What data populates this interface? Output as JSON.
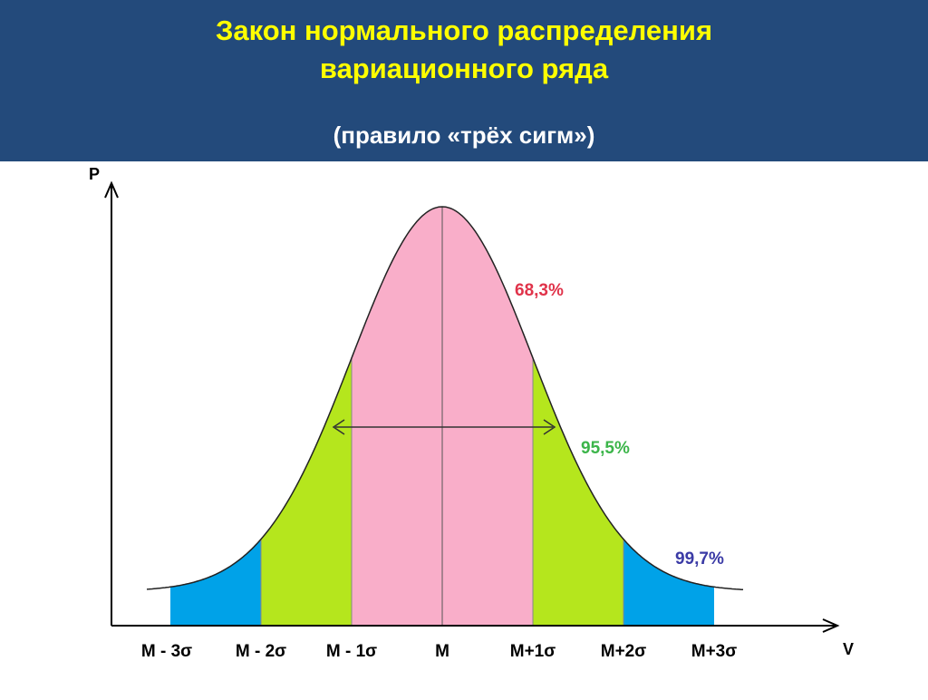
{
  "header": {
    "title_lines": [
      "Закон нормального распределения",
      "вариационного ряда"
    ],
    "subtitle": "(правило «трёх сигм»)"
  },
  "diagram": {
    "y_axis_label": "P",
    "x_axis_label": "V",
    "x_labels": [
      "M - 3σ",
      "M - 2σ",
      "M - 1σ",
      "M",
      "M+1σ",
      "M+2σ",
      "M+3σ"
    ],
    "intervals": [
      {
        "label": "68,3%",
        "color": "#f9aec9"
      },
      {
        "label": "95,5%",
        "color": "#b5e61d"
      },
      {
        "label": "99,7%",
        "color": "#00a2e8"
      }
    ]
  }
}
